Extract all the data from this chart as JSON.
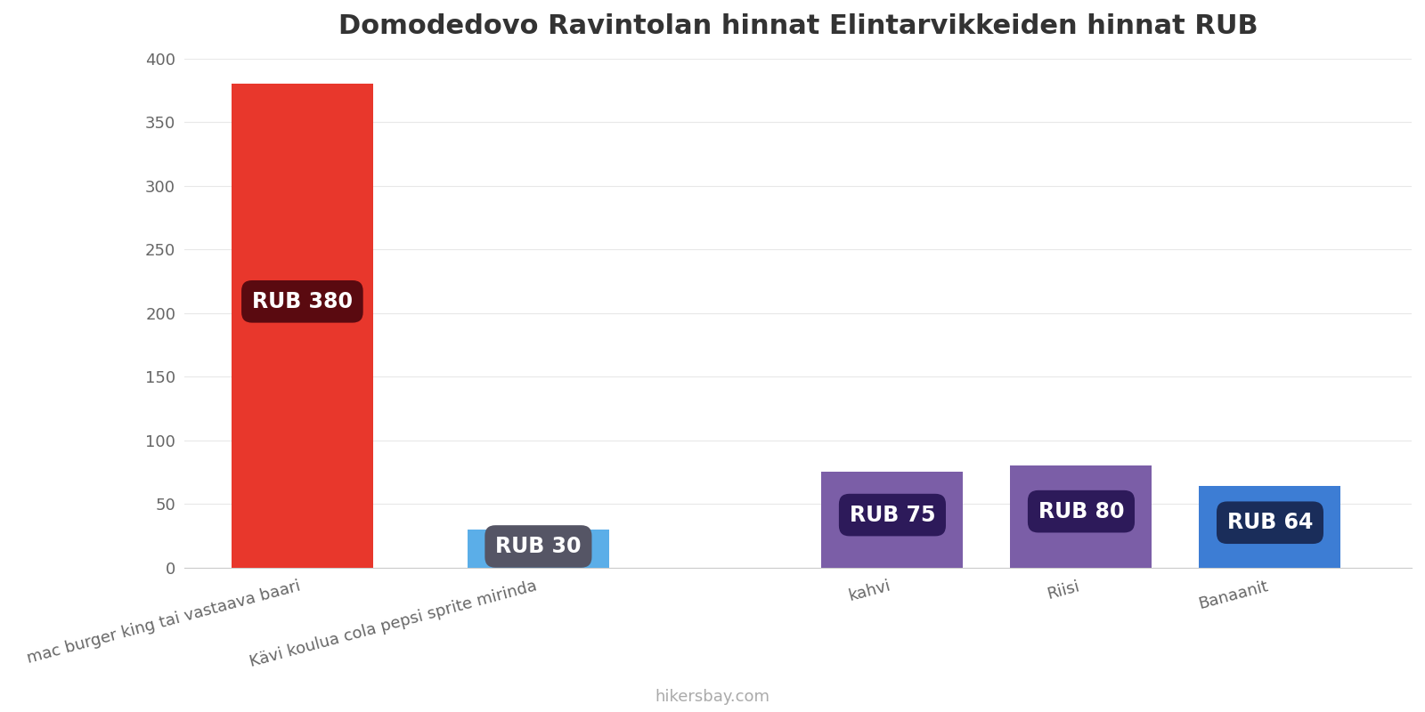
{
  "title": "Domodedovo Ravintolan hinnat Elintarvikkeiden hinnat RUB",
  "categories": [
    "mac burger king tai vastaava baari",
    "Kävi koulua cola pepsi sprite mirinda",
    "kahvi",
    "Riisi",
    "Banaanit"
  ],
  "values": [
    380,
    30,
    75,
    80,
    64
  ],
  "bar_colors": [
    "#e8372c",
    "#5baee8",
    "#7b5ea7",
    "#7b5ea7",
    "#3d7dd4"
  ],
  "label_texts": [
    "RUB 380",
    "RUB 30",
    "RUB 75",
    "RUB 80",
    "RUB 64"
  ],
  "label_bg_colors": [
    "#5a0a10",
    "#555565",
    "#2d1a5a",
    "#2d1a5a",
    "#1a2d5a"
  ],
  "x_positions": [
    0.12,
    0.3,
    0.52,
    0.68,
    0.84
  ],
  "bar_width": 0.13,
  "ylim": [
    0,
    400
  ],
  "yticks": [
    0,
    50,
    100,
    150,
    200,
    250,
    300,
    350,
    400
  ],
  "watermark": "hikersbay.com",
  "title_fontsize": 22,
  "label_fontsize": 17,
  "tick_fontsize": 13,
  "watermark_fontsize": 13,
  "background_color": "#ffffff",
  "grid_color": "#e8e8e8"
}
